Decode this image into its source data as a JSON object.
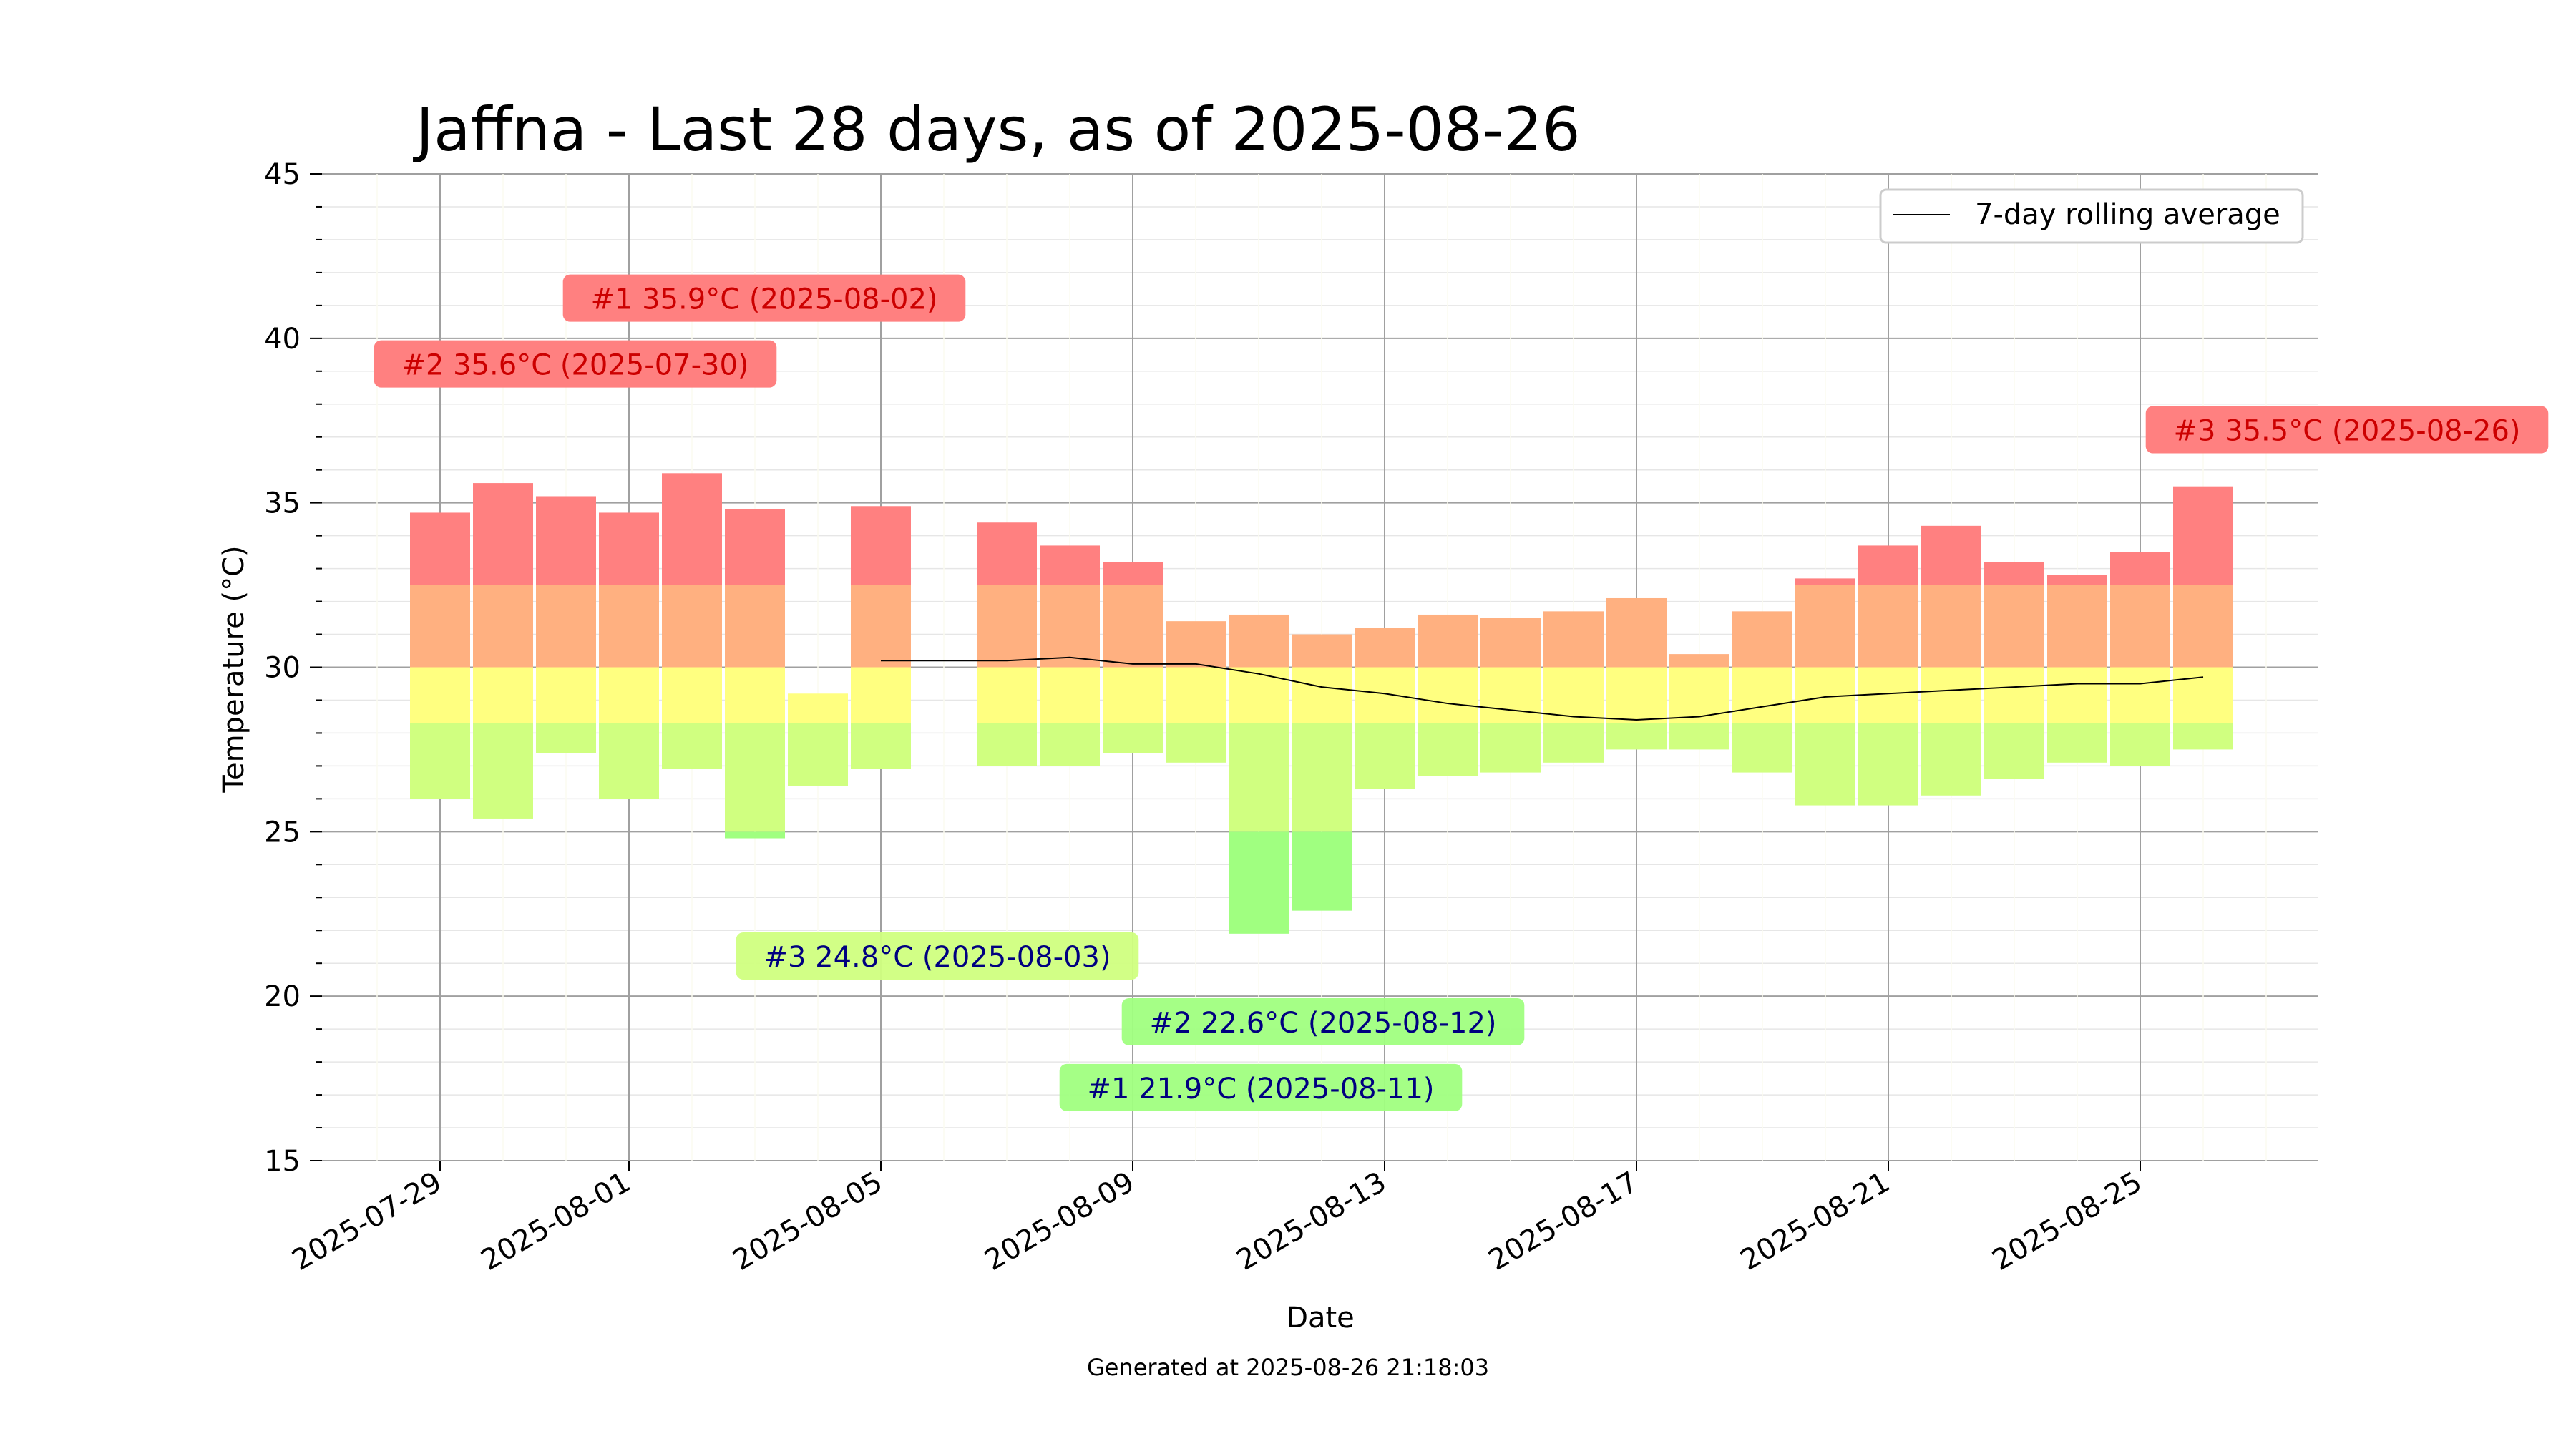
{
  "chart_data": {
    "type": "bar",
    "title": "Jaffna - Last 28 days, as of 2025-08-26",
    "xlabel": "Date",
    "ylabel": "Temperature (°C)",
    "ylim": [
      15,
      45
    ],
    "y_ticks": [
      "15",
      "20",
      "25",
      "30",
      "35",
      "40",
      "45"
    ],
    "x_ticks": [
      "2025-07-29",
      "2025-08-01",
      "2025-08-05",
      "2025-08-09",
      "2025-08-13",
      "2025-08-17",
      "2025-08-21",
      "2025-08-25"
    ],
    "grid": true,
    "legend": {
      "position": "upper-right",
      "entries": [
        "7-day rolling average"
      ]
    },
    "footer": "Generated at 2025-08-26 21:18:03",
    "days": [
      {
        "date": "2025-07-29",
        "min": 26.0,
        "max": 34.7
      },
      {
        "date": "2025-07-30",
        "min": 25.4,
        "max": 35.6
      },
      {
        "date": "2025-07-31",
        "min": 27.4,
        "max": 35.2
      },
      {
        "date": "2025-08-01",
        "min": 26.0,
        "max": 34.7
      },
      {
        "date": "2025-08-02",
        "min": 26.9,
        "max": 35.9
      },
      {
        "date": "2025-08-03",
        "min": 24.8,
        "max": 34.8
      },
      {
        "date": "2025-08-04",
        "min": 26.4,
        "max": 29.2
      },
      {
        "date": "2025-08-05",
        "min": 26.9,
        "max": 34.9
      },
      {
        "date": "2025-08-07",
        "min": 27.0,
        "max": 34.4
      },
      {
        "date": "2025-08-08",
        "min": 27.0,
        "max": 33.7
      },
      {
        "date": "2025-08-09",
        "min": 27.4,
        "max": 33.2
      },
      {
        "date": "2025-08-10",
        "min": 27.1,
        "max": 31.4
      },
      {
        "date": "2025-08-11",
        "min": 21.9,
        "max": 31.6
      },
      {
        "date": "2025-08-12",
        "min": 22.6,
        "max": 31.0
      },
      {
        "date": "2025-08-13",
        "min": 26.3,
        "max": 31.2
      },
      {
        "date": "2025-08-14",
        "min": 26.7,
        "max": 31.6
      },
      {
        "date": "2025-08-15",
        "min": 26.8,
        "max": 31.5
      },
      {
        "date": "2025-08-16",
        "min": 27.1,
        "max": 31.7
      },
      {
        "date": "2025-08-17",
        "min": 27.5,
        "max": 32.1
      },
      {
        "date": "2025-08-18",
        "min": 27.5,
        "max": 30.4
      },
      {
        "date": "2025-08-19",
        "min": 26.8,
        "max": 31.7
      },
      {
        "date": "2025-08-20",
        "min": 25.8,
        "max": 32.7
      },
      {
        "date": "2025-08-21",
        "min": 25.8,
        "max": 33.7
      },
      {
        "date": "2025-08-22",
        "min": 26.1,
        "max": 34.3
      },
      {
        "date": "2025-08-23",
        "min": 26.6,
        "max": 33.2
      },
      {
        "date": "2025-08-24",
        "min": 27.1,
        "max": 32.8
      },
      {
        "date": "2025-08-25",
        "min": 27.0,
        "max": 33.5
      },
      {
        "date": "2025-08-26",
        "min": 27.5,
        "max": 35.5
      }
    ],
    "rolling_average": {
      "name": "7-day rolling average",
      "points": [
        {
          "date": "2025-08-05",
          "value": 30.2
        },
        {
          "date": "2025-08-07",
          "value": 30.2
        },
        {
          "date": "2025-08-08",
          "value": 30.3
        },
        {
          "date": "2025-08-09",
          "value": 30.1
        },
        {
          "date": "2025-08-10",
          "value": 30.1
        },
        {
          "date": "2025-08-11",
          "value": 29.8
        },
        {
          "date": "2025-08-12",
          "value": 29.4
        },
        {
          "date": "2025-08-13",
          "value": 29.2
        },
        {
          "date": "2025-08-14",
          "value": 28.9
        },
        {
          "date": "2025-08-15",
          "value": 28.7
        },
        {
          "date": "2025-08-16",
          "value": 28.5
        },
        {
          "date": "2025-08-17",
          "value": 28.4
        },
        {
          "date": "2025-08-18",
          "value": 28.5
        },
        {
          "date": "2025-08-19",
          "value": 28.8
        },
        {
          "date": "2025-08-20",
          "value": 29.1
        },
        {
          "date": "2025-08-21",
          "value": 29.2
        },
        {
          "date": "2025-08-22",
          "value": 29.3
        },
        {
          "date": "2025-08-23",
          "value": 29.4
        },
        {
          "date": "2025-08-24",
          "value": 29.5
        },
        {
          "date": "2025-08-25",
          "value": 29.5
        },
        {
          "date": "2025-08-26",
          "value": 29.7
        }
      ]
    },
    "annotations": [
      {
        "text": "#1 35.9°C (2025-08-02)",
        "kind": "high",
        "y": 41.2
      },
      {
        "text": "#2 35.6°C (2025-07-30)",
        "kind": "high",
        "y": 39.2
      },
      {
        "text": "#3 35.5°C (2025-08-26)",
        "kind": "high",
        "y": 37.2
      },
      {
        "text": "#3 24.8°C (2025-08-03)",
        "kind": "low",
        "y": 21.2
      },
      {
        "text": "#2 22.6°C (2025-08-12)",
        "kind": "low",
        "y": 19.2
      },
      {
        "text": "#1 21.9°C (2025-08-11)",
        "kind": "low",
        "y": 17.2
      }
    ],
    "colors": {
      "hot": "#ff8080",
      "warm": "#ffb080",
      "mild": "#ffff80",
      "cool": "#d0ff80",
      "cold": "#a0ff80",
      "high_label_text": "#cc0000",
      "low_label_text": "#000080",
      "rolling_line": "#000000"
    }
  }
}
